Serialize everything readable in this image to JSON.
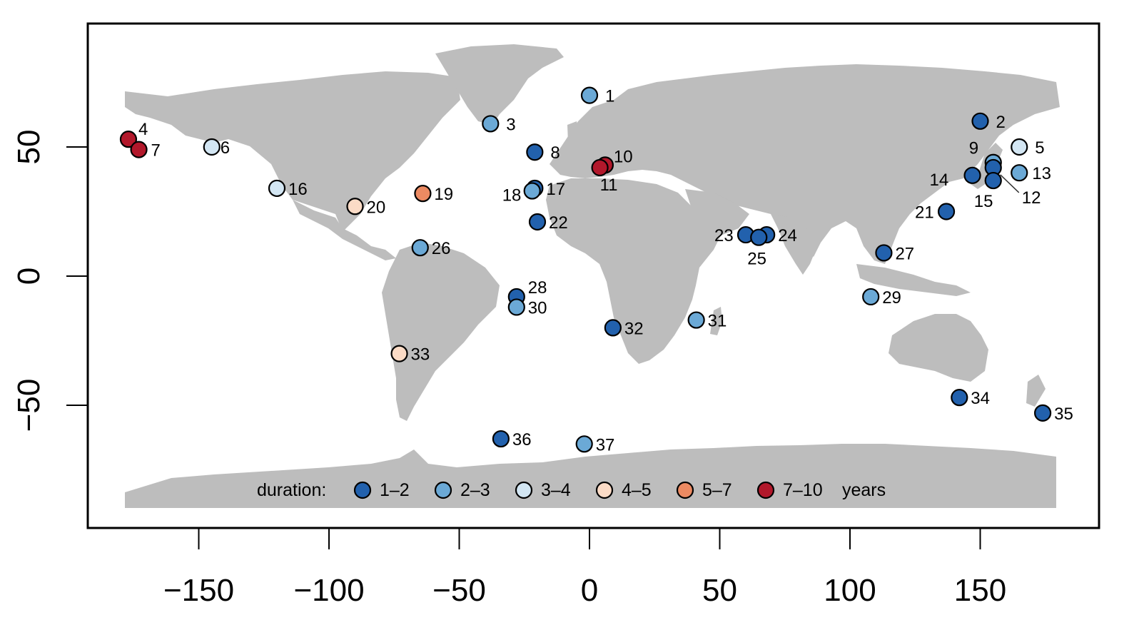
{
  "map": {
    "x_axis": {
      "ticks": [
        -150,
        -100,
        -50,
        0,
        50,
        100,
        150
      ],
      "tick_labels": [
        "−150",
        "−100",
        "−50",
        "0",
        "50",
        "100",
        "150"
      ],
      "range": [
        -192,
        192
      ]
    },
    "y_axis": {
      "ticks": [
        -50,
        0,
        50
      ],
      "tick_labels": [
        "−50",
        "0",
        "50"
      ],
      "range": [
        -90,
        97
      ]
    },
    "legend": {
      "title": "duration:",
      "unit": "years",
      "classes": [
        {
          "label": "1–2",
          "color": "#2261ad"
        },
        {
          "label": "2–3",
          "color": "#6ba9d6"
        },
        {
          "label": "3–4",
          "color": "#d3e6f3"
        },
        {
          "label": "4–5",
          "color": "#fbdbc6"
        },
        {
          "label": "5–7",
          "color": "#ec8a62"
        },
        {
          "label": "7–10",
          "color": "#b2182b"
        }
      ]
    },
    "land_color": "#bdbdbd",
    "sites": [
      {
        "id": "1",
        "lon": 0,
        "lat": 70,
        "class": 1,
        "label_dx": 22,
        "label_dy": 9
      },
      {
        "id": "2",
        "lon": 150,
        "lat": 60,
        "class": 0,
        "label_dx": 22,
        "label_dy": 9
      },
      {
        "id": "3",
        "lon": -38,
        "lat": 59,
        "class": 1,
        "label_dx": 22,
        "label_dy": 9
      },
      {
        "id": "4",
        "lon": -177,
        "lat": 53,
        "class": 5,
        "label_dx": 14,
        "label_dy": -6
      },
      {
        "id": "5",
        "lon": 165,
        "lat": 50,
        "class": 2,
        "label_dx": 22,
        "label_dy": 9
      },
      {
        "id": "6",
        "lon": -145,
        "lat": 50,
        "class": 2,
        "label_dx": 12,
        "label_dy": 9
      },
      {
        "id": "7",
        "lon": -173,
        "lat": 49,
        "class": 5,
        "label_dx": 17,
        "label_dy": 9
      },
      {
        "id": "8",
        "lon": -21,
        "lat": 48,
        "class": 0,
        "label_dx": 22,
        "label_dy": 9
      },
      {
        "id": "9",
        "lon": 155,
        "lat": 44,
        "class": 1,
        "label_dx": -34,
        "label_dy": -12
      },
      {
        "id": "10",
        "lon": 6,
        "lat": 43,
        "class": 5,
        "label_dx": 12,
        "label_dy": -4
      },
      {
        "id": "11",
        "lon": 4,
        "lat": 42,
        "class": 5,
        "label_dx": 0,
        "label_dy": 32
      },
      {
        "id": "12",
        "lon": 155,
        "lat": 42,
        "class": 0,
        "label_dx": 40,
        "label_dy": 50
      },
      {
        "id": "13",
        "lon": 165,
        "lat": 40,
        "class": 1,
        "label_dx": 18,
        "label_dy": 9
      },
      {
        "id": "14",
        "lon": 147,
        "lat": 39,
        "class": 0,
        "label_dx": -60,
        "label_dy": 14
      },
      {
        "id": "15",
        "lon": 155,
        "lat": 37,
        "class": 0,
        "label_dx": -27,
        "label_dy": 37
      },
      {
        "id": "16",
        "lon": -120,
        "lat": 34,
        "class": 2,
        "label_dx": 16,
        "label_dy": 9
      },
      {
        "id": "17",
        "lon": -21,
        "lat": 34,
        "class": 0,
        "label_dx": 16,
        "label_dy": 9
      },
      {
        "id": "18",
        "lon": -22,
        "lat": 33,
        "class": 1,
        "label_dx": -42,
        "label_dy": 14
      },
      {
        "id": "19",
        "lon": -64,
        "lat": 32,
        "class": 4,
        "label_dx": 16,
        "label_dy": 9
      },
      {
        "id": "20",
        "lon": -90,
        "lat": 27,
        "class": 3,
        "label_dx": 16,
        "label_dy": 9
      },
      {
        "id": "21",
        "lon": 137,
        "lat": 25,
        "class": 0,
        "label_dx": -44,
        "label_dy": 9
      },
      {
        "id": "22",
        "lon": -20,
        "lat": 21,
        "class": 0,
        "label_dx": 16,
        "label_dy": 9
      },
      {
        "id": "23",
        "lon": 60,
        "lat": 16,
        "class": 0,
        "label_dx": -44,
        "label_dy": 9
      },
      {
        "id": "24",
        "lon": 68,
        "lat": 16,
        "class": 0,
        "label_dx": 16,
        "label_dy": 9
      },
      {
        "id": "25",
        "lon": 65,
        "lat": 15,
        "class": 0,
        "label_dx": -16,
        "label_dy": 38
      },
      {
        "id": "26",
        "lon": -65,
        "lat": 11,
        "class": 1,
        "label_dx": 16,
        "label_dy": 9
      },
      {
        "id": "27",
        "lon": 113,
        "lat": 9,
        "class": 0,
        "label_dx": 16,
        "label_dy": 9
      },
      {
        "id": "28",
        "lon": -28,
        "lat": -8,
        "class": 0,
        "label_dx": 16,
        "label_dy": -5
      },
      {
        "id": "29",
        "lon": 108,
        "lat": -8,
        "class": 1,
        "label_dx": 16,
        "label_dy": 9
      },
      {
        "id": "30",
        "lon": -28,
        "lat": -12,
        "class": 1,
        "label_dx": 16,
        "label_dy": 9
      },
      {
        "id": "31",
        "lon": 41,
        "lat": -17,
        "class": 1,
        "label_dx": 16,
        "label_dy": 9
      },
      {
        "id": "32",
        "lon": 9,
        "lat": -20,
        "class": 0,
        "label_dx": 16,
        "label_dy": 9
      },
      {
        "id": "33",
        "lon": -73,
        "lat": -30,
        "class": 3,
        "label_dx": 16,
        "label_dy": 9
      },
      {
        "id": "34",
        "lon": 142,
        "lat": -47,
        "class": 0,
        "label_dx": 16,
        "label_dy": 9
      },
      {
        "id": "35",
        "lon": 174,
        "lat": -53,
        "class": 0,
        "label_dx": 16,
        "label_dy": 9
      },
      {
        "id": "36",
        "lon": -34,
        "lat": -63,
        "class": 0,
        "label_dx": 16,
        "label_dy": 9
      },
      {
        "id": "37",
        "lon": -2,
        "lat": -65,
        "class": 1,
        "label_dx": 16,
        "label_dy": 9
      }
    ]
  }
}
